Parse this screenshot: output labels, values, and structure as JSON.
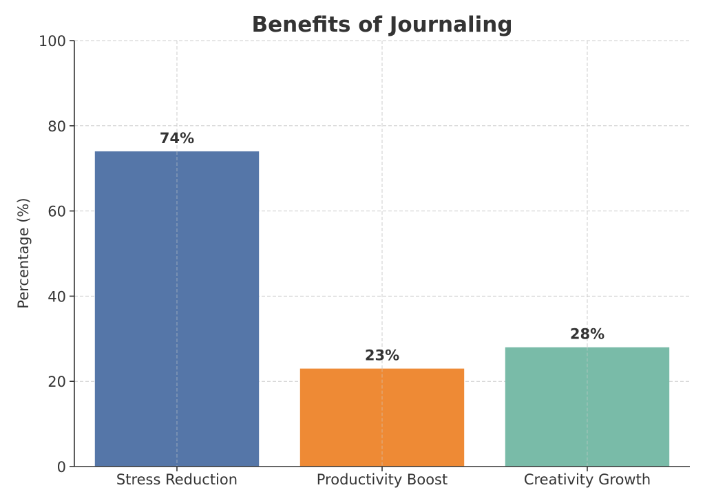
{
  "chart_data": {
    "type": "bar",
    "title": "Benefits of Journaling",
    "xlabel": "",
    "ylabel": "Percentage (%)",
    "ylim": [
      0,
      100
    ],
    "yticks": [
      0,
      20,
      40,
      60,
      80,
      100
    ],
    "categories": [
      "Stress Reduction",
      "Productivity Boost",
      "Creativity Growth"
    ],
    "values": [
      74,
      23,
      28
    ],
    "value_labels": [
      "74%",
      "23%",
      "28%"
    ],
    "colors": [
      "#5576a8",
      "#ee8a35",
      "#79bba8"
    ],
    "grid": true,
    "legend": "none"
  }
}
